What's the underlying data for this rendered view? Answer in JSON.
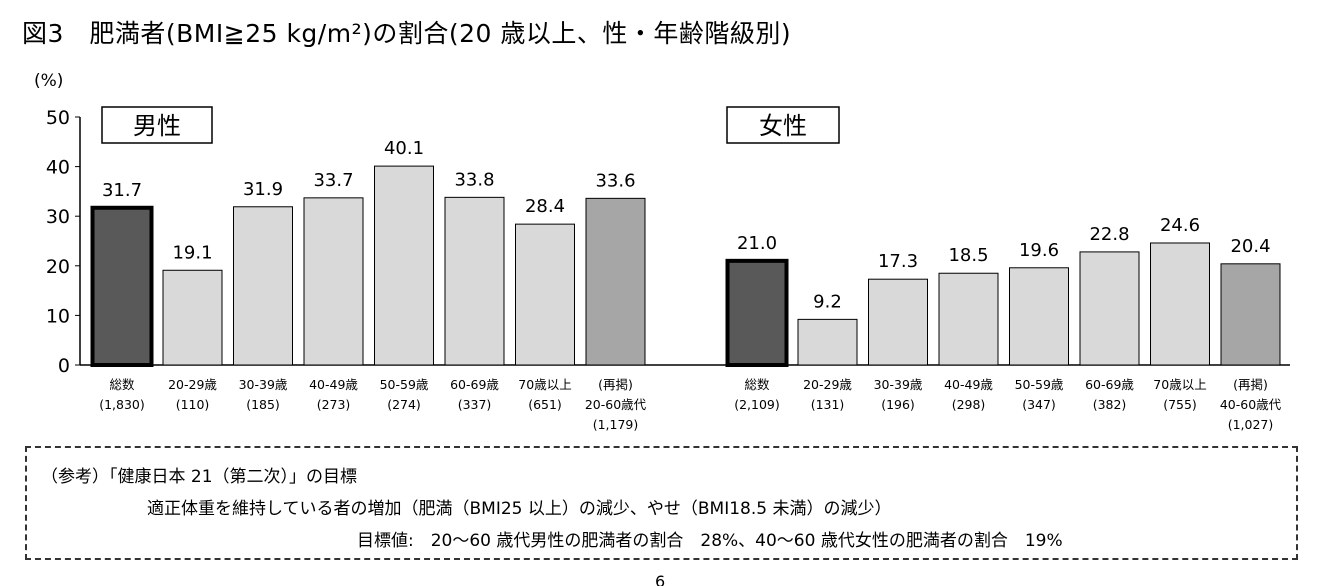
{
  "chart_data": {
    "type": "bar",
    "title": "図3　肥満者(BMI≧25 kg/m²)の割合(20 歳以上、性・年齢階級別)",
    "ylabel": "(%)",
    "ylim": [
      0,
      50
    ],
    "yticks": [
      0,
      10,
      20,
      30,
      40,
      50
    ],
    "panels": [
      {
        "name": "男性",
        "categories": [
          [
            "総数",
            "(1,830)"
          ],
          [
            "20-29歳",
            "(110)"
          ],
          [
            "30-39歳",
            "(185)"
          ],
          [
            "40-49歳",
            "(273)"
          ],
          [
            "50-59歳",
            "(274)"
          ],
          [
            "60-69歳",
            "(337)"
          ],
          [
            "70歳以上",
            "(651)"
          ],
          [
            "(再掲)",
            "20-60歳代",
            "(1,179)"
          ]
        ],
        "values": [
          31.7,
          19.1,
          31.9,
          33.7,
          40.1,
          33.8,
          28.4,
          33.6
        ],
        "labels": [
          "31.7",
          "19.1",
          "31.9",
          "33.7",
          "40.1",
          "33.8",
          "28.4",
          "33.6"
        ]
      },
      {
        "name": "女性",
        "categories": [
          [
            "総数",
            "(2,109)"
          ],
          [
            "20-29歳",
            "(131)"
          ],
          [
            "30-39歳",
            "(196)"
          ],
          [
            "40-49歳",
            "(298)"
          ],
          [
            "50-59歳",
            "(347)"
          ],
          [
            "60-69歳",
            "(382)"
          ],
          [
            "70歳以上",
            "(755)"
          ],
          [
            "(再掲)",
            "40-60歳代",
            "(1,027)"
          ]
        ],
        "values": [
          21.0,
          9.2,
          17.3,
          18.5,
          19.6,
          22.8,
          24.6,
          20.4
        ],
        "labels": [
          "21.0",
          "9.2",
          "17.3",
          "18.5",
          "19.6",
          "22.8",
          "24.6",
          "20.4"
        ]
      }
    ],
    "colors": {
      "total": "#595959",
      "age": "#d9d9d9",
      "recap": "#a6a6a6"
    }
  },
  "note": {
    "line1": "（参考）「健康日本 21（第二次）」の目標",
    "line2": "適正体重を維持している者の増加（肥満（BMI25 以上）の減少、やせ（BMI18.5 未満）の減少）",
    "line3": "目標値:　20～60 歳代男性の肥満者の割合　28%、40～60 歳代女性の肥満者の割合　19%"
  },
  "page_number": "6"
}
